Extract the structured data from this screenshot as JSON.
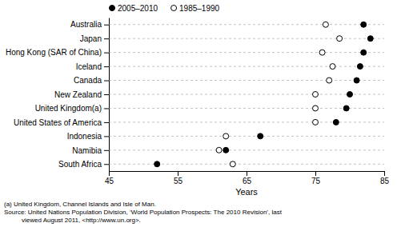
{
  "chart_data": {
    "type": "dot",
    "orientation": "horizontal",
    "categories": [
      "Australia",
      "Japan",
      "Hong Kong (SAR of China)",
      "Iceland",
      "Canada",
      "New Zealand",
      "United Kingdom(a)",
      "United States of America",
      "Indonesia",
      "Namibia",
      "South Africa"
    ],
    "series": [
      {
        "name": "2005–2010",
        "color": "#000000",
        "marker": "filled-circle",
        "values": [
          82.0,
          83.0,
          82.0,
          81.5,
          81.0,
          80.0,
          79.5,
          78.0,
          67.0,
          62.0,
          52.0
        ]
      },
      {
        "name": "1985–1990",
        "color": "#000000",
        "marker": "open-circle",
        "values": [
          76.5,
          78.5,
          76.0,
          77.5,
          77.0,
          75.0,
          75.0,
          75.0,
          62.0,
          61.0,
          63.0
        ]
      }
    ],
    "xlabel": "Years",
    "xlim": [
      45,
      85
    ],
    "xticks": [
      45,
      55,
      65,
      75,
      85
    ],
    "grid": true,
    "legend": "upper-left",
    "annotations": [
      "(a) United Kingdom, Channel Islands and Isle of Man.",
      "Source: United Nations Population Division, ‘World Population Prospects: The 2010 Revision’, last",
      "viewed August 2011, <http://www.un.org>."
    ]
  }
}
